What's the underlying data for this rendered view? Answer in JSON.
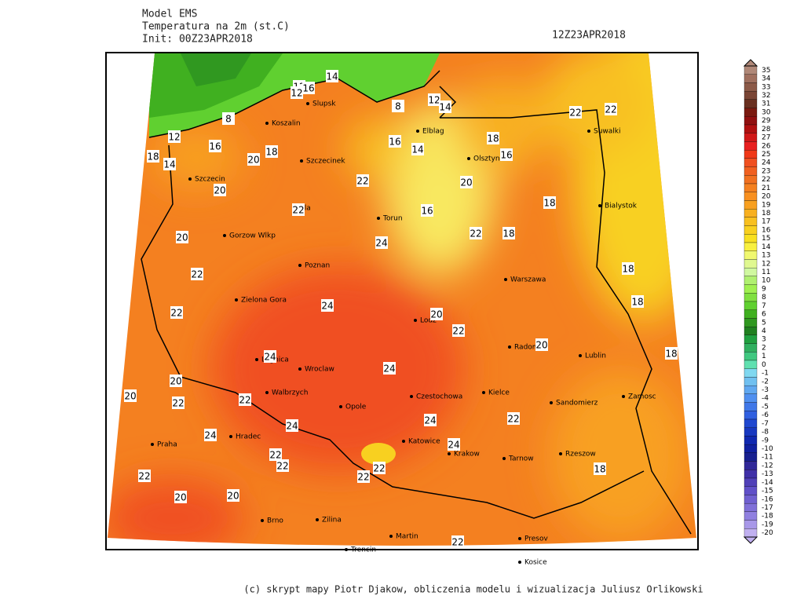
{
  "header": {
    "model": "Model EMS",
    "variable": "Temperatura na 2m (st.C)",
    "init": "Init: 00Z23APR2018",
    "valid": "12Z23APR2018"
  },
  "colorbar": {
    "levels": [
      35,
      34,
      33,
      32,
      31,
      30,
      29,
      28,
      27,
      26,
      25,
      24,
      23,
      22,
      21,
      20,
      19,
      18,
      17,
      16,
      15,
      14,
      13,
      12,
      11,
      10,
      9,
      8,
      7,
      6,
      5,
      4,
      3,
      2,
      1,
      0,
      -1,
      -2,
      -3,
      -4,
      -5,
      -6,
      -7,
      -8,
      -9,
      -10,
      -11,
      -12,
      -13,
      -14,
      -15,
      -16,
      -17,
      -18,
      -19,
      -20
    ],
    "colors": [
      "#b08878",
      "#a0705f",
      "#8c5a48",
      "#7a4535",
      "#6a3020",
      "#7a1a10",
      "#901010",
      "#b01010",
      "#d01818",
      "#e82020",
      "#f03818",
      "#f05020",
      "#f06020",
      "#f07020",
      "#f48020",
      "#f89020",
      "#f8a020",
      "#f8b020",
      "#f8c020",
      "#f8d020",
      "#f8e020",
      "#f8f040",
      "#f0f870",
      "#e0f890",
      "#d0f8a0",
      "#b0f070",
      "#a0f050",
      "#80e040",
      "#60d030",
      "#40b020",
      "#309820",
      "#208020",
      "#20a040",
      "#30b060",
      "#40c880",
      "#60e0b0",
      "#80d8f0",
      "#70c0f0",
      "#60a8f0",
      "#5090f0",
      "#4078e8",
      "#3060e0",
      "#2048d0",
      "#1838c0",
      "#1028b0",
      "#1020a0",
      "#182090",
      "#302898",
      "#4030a8",
      "#5040b8",
      "#6050c8",
      "#7060d0",
      "#8070d8",
      "#9080e0",
      "#a898e8",
      "#c0b0f0"
    ]
  },
  "cities": [
    "Koszalin",
    "Slupsk",
    "Elblag",
    "Olsztyn",
    "Suwalki",
    "Szczecinek",
    "Szczecin",
    "Pila",
    "Torun",
    "Bialystok",
    "Gorzow Wlkp",
    "Poznan",
    "Warszawa",
    "Zielona Gora",
    "Lodz",
    "Radom",
    "Lublin",
    "Legnica",
    "Wroclaw",
    "Kielce",
    "Walbrzych",
    "Opole",
    "Czestochowa",
    "Sandomierz",
    "Zamosc",
    "Hradec",
    "Katowice",
    "Krakow",
    "Praha",
    "Tarnow",
    "Rzeszow",
    "Brno",
    "Zilina",
    "Martin",
    "Trencin",
    "Presov",
    "Kosice"
  ],
  "contour_labels": [
    14,
    12,
    16,
    12,
    8,
    12,
    14,
    8,
    12,
    14,
    18,
    16,
    14,
    18,
    16,
    16,
    18,
    20,
    20,
    22,
    20,
    16,
    18,
    18,
    22,
    22,
    22,
    22,
    24,
    20,
    22,
    18,
    18,
    18,
    24,
    24,
    20,
    22,
    22,
    20,
    22,
    24,
    24,
    24,
    22,
    24,
    24,
    22,
    20,
    22,
    22,
    22,
    22,
    20,
    22,
    20,
    20,
    18,
    22
  ],
  "footer": "(c) skrypt mapy Piotr Djakow, obliczenia modelu i wizualizacja Juliusz Orlikowski"
}
